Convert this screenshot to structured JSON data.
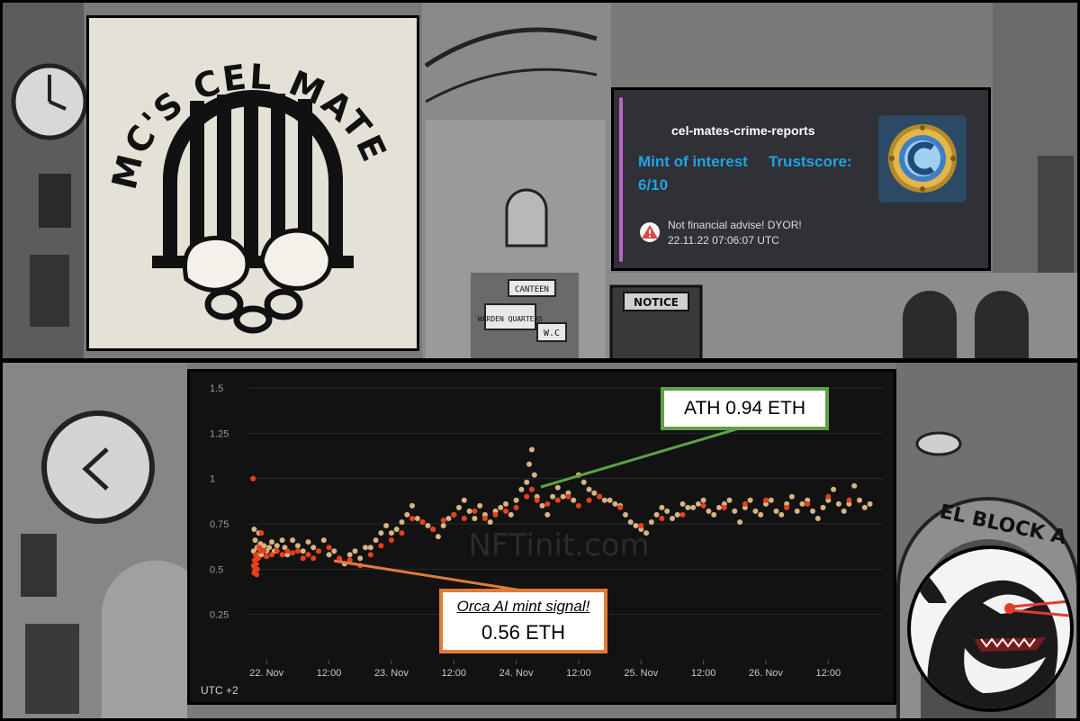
{
  "logo": {
    "title": "MC'S CEL MATES"
  },
  "embed": {
    "author": "cel-mates-crime-reports",
    "field_title_1": "Mint of interest",
    "field_title_2": "Trustscore:",
    "field_value": "6/10",
    "footer_text": "Not financial advise! DYOR!",
    "timestamp": "22.11.22 07:06:07 UTC",
    "accent_color": "#c061c9",
    "link_color": "#1fa3e6"
  },
  "scene_signs": [
    "NOTICE",
    "CANTEEN",
    "WARDEN QUARTERS",
    "W.C",
    "EL BLOCK A"
  ],
  "watermark": "NFTinit.com",
  "callouts": {
    "ath": "ATH 0.94 ETH",
    "orca_line1": "Orca AI mint signal!",
    "orca_line2": "0.56 ETH"
  },
  "chart_data": {
    "type": "scatter",
    "title": "",
    "xlabel": "",
    "ylabel": "",
    "timezone_label": "UTC +2",
    "y_ticks": [
      "0.25",
      "0.5",
      "0.75",
      "1",
      "1.25",
      "1.5"
    ],
    "ylim": [
      0,
      1.5
    ],
    "x_ticks": [
      "22. Nov",
      "12:00",
      "23. Nov",
      "12:00",
      "24. Nov",
      "12:00",
      "25. Nov",
      "12:00",
      "26. Nov",
      "12:00"
    ],
    "x_tick_hours": [
      0,
      12,
      24,
      36,
      48,
      60,
      72,
      84,
      96,
      108
    ],
    "xlim_hours": [
      -3.5,
      118.5
    ],
    "colors": {
      "sale": "#d7b483",
      "highlight": "#e8401c"
    },
    "series": [
      {
        "name": "",
        "color": "#d7b483",
        "points": [
          [
            -2.5,
            0.6
          ],
          [
            -2.4,
            0.72
          ],
          [
            -2.2,
            0.66
          ],
          [
            -2,
            0.58
          ],
          [
            -1.8,
            0.62
          ],
          [
            -1.5,
            0.7
          ],
          [
            -1.2,
            0.64
          ],
          [
            -1,
            0.58
          ],
          [
            -0.8,
            0.6
          ],
          [
            -0.5,
            0.63
          ],
          [
            0,
            0.6
          ],
          [
            0.5,
            0.62
          ],
          [
            1,
            0.65
          ],
          [
            1.5,
            0.6
          ],
          [
            2,
            0.63
          ],
          [
            3,
            0.66
          ],
          [
            3.5,
            0.62
          ],
          [
            4,
            0.58
          ],
          [
            5,
            0.66
          ],
          [
            6,
            0.63
          ],
          [
            7,
            0.6
          ],
          [
            8,
            0.65
          ],
          [
            9,
            0.62
          ],
          [
            10,
            0.6
          ],
          [
            11,
            0.66
          ],
          [
            12,
            0.58
          ],
          [
            13,
            0.6
          ],
          [
            14,
            0.55
          ],
          [
            15,
            0.53
          ],
          [
            16,
            0.58
          ],
          [
            17,
            0.6
          ],
          [
            18,
            0.56
          ],
          [
            19,
            0.62
          ],
          [
            20,
            0.62
          ],
          [
            21,
            0.66
          ],
          [
            22,
            0.7
          ],
          [
            23,
            0.74
          ],
          [
            24,
            0.7
          ],
          [
            25,
            0.72
          ],
          [
            26,
            0.76
          ],
          [
            27,
            0.8
          ],
          [
            28,
            0.85
          ],
          [
            29,
            0.78
          ],
          [
            30,
            0.76
          ],
          [
            31,
            0.74
          ],
          [
            32,
            0.72
          ],
          [
            33,
            0.68
          ],
          [
            34,
            0.74
          ],
          [
            35,
            0.78
          ],
          [
            36,
            0.8
          ],
          [
            37,
            0.84
          ],
          [
            38,
            0.88
          ],
          [
            39,
            0.82
          ],
          [
            40,
            0.78
          ],
          [
            41,
            0.85
          ],
          [
            42,
            0.8
          ],
          [
            43,
            0.76
          ],
          [
            44,
            0.82
          ],
          [
            45,
            0.84
          ],
          [
            46,
            0.86
          ],
          [
            47,
            0.8
          ],
          [
            48,
            0.88
          ],
          [
            49,
            0.94
          ],
          [
            50,
            0.98
          ],
          [
            50.5,
            1.08
          ],
          [
            51,
            1.16
          ],
          [
            51.5,
            1.02
          ],
          [
            52,
            0.9
          ],
          [
            53,
            0.85
          ],
          [
            54,
            0.8
          ],
          [
            55,
            0.9
          ],
          [
            56,
            0.95
          ],
          [
            57,
            0.9
          ],
          [
            58,
            0.92
          ],
          [
            59,
            0.88
          ],
          [
            60,
            1.02
          ],
          [
            61,
            0.98
          ],
          [
            62,
            0.94
          ],
          [
            63,
            0.92
          ],
          [
            64,
            0.9
          ],
          [
            65,
            0.88
          ],
          [
            66,
            0.88
          ],
          [
            67,
            0.86
          ],
          [
            68,
            0.85
          ],
          [
            69,
            0.8
          ],
          [
            70,
            0.76
          ],
          [
            71,
            0.74
          ],
          [
            72,
            0.72
          ],
          [
            73,
            0.7
          ],
          [
            74,
            0.76
          ],
          [
            75,
            0.8
          ],
          [
            76,
            0.84
          ],
          [
            77,
            0.82
          ],
          [
            78,
            0.78
          ],
          [
            79,
            0.8
          ],
          [
            80,
            0.86
          ],
          [
            81,
            0.84
          ],
          [
            82,
            0.84
          ],
          [
            83,
            0.86
          ],
          [
            84,
            0.88
          ],
          [
            85,
            0.82
          ],
          [
            86,
            0.8
          ],
          [
            87,
            0.84
          ],
          [
            88,
            0.86
          ],
          [
            89,
            0.88
          ],
          [
            90,
            0.82
          ],
          [
            91,
            0.76
          ],
          [
            92,
            0.84
          ],
          [
            93,
            0.88
          ],
          [
            94,
            0.82
          ],
          [
            95,
            0.8
          ],
          [
            96,
            0.86
          ],
          [
            97,
            0.88
          ],
          [
            98,
            0.82
          ],
          [
            99,
            0.8
          ],
          [
            100,
            0.86
          ],
          [
            101,
            0.9
          ],
          [
            102,
            0.82
          ],
          [
            103,
            0.86
          ],
          [
            104,
            0.88
          ],
          [
            105,
            0.82
          ],
          [
            106,
            0.78
          ],
          [
            107,
            0.84
          ],
          [
            108,
            0.88
          ],
          [
            109,
            0.94
          ],
          [
            110,
            0.86
          ],
          [
            111,
            0.82
          ],
          [
            112,
            0.86
          ],
          [
            113,
            0.96
          ],
          [
            114,
            0.88
          ],
          [
            115,
            0.84
          ],
          [
            116,
            0.86
          ]
        ]
      },
      {
        "name": "",
        "color": "#e8401c",
        "points": [
          [
            -2.6,
            1
          ],
          [
            -2.5,
            0.52
          ],
          [
            -2.4,
            0.48
          ],
          [
            -2.3,
            0.55
          ],
          [
            -2.2,
            0.5
          ],
          [
            -2.1,
            0.58
          ],
          [
            -2,
            0.53
          ],
          [
            -1.9,
            0.47
          ],
          [
            -1.8,
            0.5
          ],
          [
            -1.6,
            0.56
          ],
          [
            -1.4,
            0.62
          ],
          [
            -1.2,
            0.6
          ],
          [
            -1,
            0.7
          ],
          [
            -0.5,
            0.6
          ],
          [
            0,
            0.57
          ],
          [
            1,
            0.58
          ],
          [
            2,
            0.6
          ],
          [
            3,
            0.58
          ],
          [
            4,
            0.6
          ],
          [
            5,
            0.59
          ],
          [
            6,
            0.6
          ],
          [
            7,
            0.56
          ],
          [
            8,
            0.58
          ],
          [
            9,
            0.56
          ],
          [
            10,
            0.6
          ],
          [
            12,
            0.62
          ],
          [
            14,
            0.56
          ],
          [
            16,
            0.55
          ],
          [
            18,
            0.52
          ],
          [
            20,
            0.58
          ],
          [
            22,
            0.63
          ],
          [
            24,
            0.66
          ],
          [
            26,
            0.7
          ],
          [
            28,
            0.78
          ],
          [
            30,
            0.76
          ],
          [
            32,
            0.72
          ],
          [
            34,
            0.77
          ],
          [
            36,
            0.8
          ],
          [
            38,
            0.78
          ],
          [
            40,
            0.82
          ],
          [
            42,
            0.78
          ],
          [
            44,
            0.8
          ],
          [
            46,
            0.82
          ],
          [
            48,
            0.84
          ],
          [
            50,
            0.9
          ],
          [
            51,
            0.94
          ],
          [
            52,
            0.88
          ],
          [
            54,
            0.86
          ],
          [
            56,
            0.88
          ],
          [
            58,
            0.9
          ],
          [
            60,
            0.85
          ],
          [
            62,
            0.88
          ],
          [
            64,
            0.9
          ],
          [
            68,
            0.84
          ],
          [
            72,
            0.74
          ],
          [
            76,
            0.78
          ],
          [
            80,
            0.8
          ],
          [
            84,
            0.85
          ],
          [
            88,
            0.84
          ],
          [
            92,
            0.86
          ],
          [
            96,
            0.88
          ],
          [
            100,
            0.84
          ],
          [
            104,
            0.86
          ],
          [
            108,
            0.9
          ],
          [
            112,
            0.88
          ]
        ]
      }
    ]
  }
}
